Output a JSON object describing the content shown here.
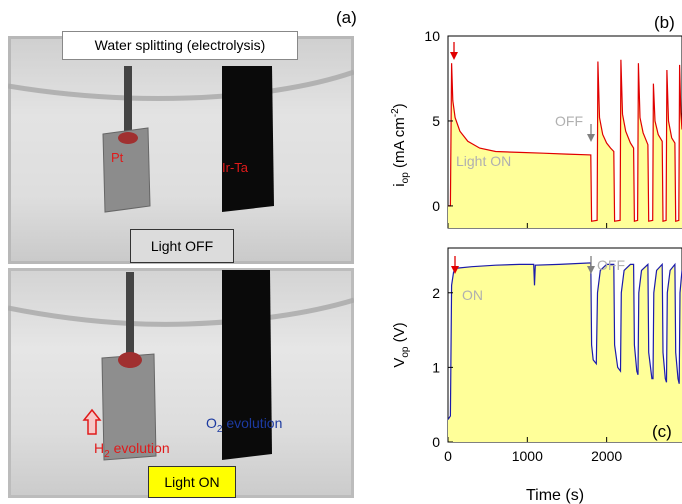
{
  "panel_a": {
    "letter": "(a)",
    "title": "Water splitting (electrolysis)",
    "state_off": "Light OFF",
    "state_on": "Light ON",
    "electrode_left": "Pt",
    "electrode_right": "Ir-Ta",
    "h2_main": "H",
    "h2_sub": "2",
    "h2_rest": " evolution",
    "o2_main": "O",
    "o2_sub": "2",
    "o2_rest": " evolution"
  },
  "panel_b": {
    "letter": "(b)",
    "annot_off": "OFF",
    "annot_on": "Light ON"
  },
  "panel_c": {
    "letter": "(c)",
    "annot_off": "OFF",
    "annot_on": "ON"
  },
  "colors": {
    "fill": "#ffff99",
    "current": "#e00000",
    "voltage": "#1c1caa",
    "arrow_red": "#e00000",
    "arrow_gray": "#808080",
    "annot_gray": "#b0b0b0"
  },
  "chart_data": [
    {
      "type": "line",
      "panel": "b",
      "ylabel_main": "i",
      "ylabel_sub": "op",
      "ylabel_rest": " (mA cm",
      "ylabel_sup": "-2",
      "ylabel_close": ")",
      "xlim": [
        0,
        2950
      ],
      "ylim": [
        -1.3,
        10
      ],
      "yticks": [
        0,
        5,
        10
      ],
      "xticks": [
        0,
        1000,
        2000
      ],
      "series": [
        {
          "values": [
            [
              0,
              0
            ],
            [
              30,
              0
            ],
            [
              45,
              8.4
            ],
            [
              60,
              6.2
            ],
            [
              90,
              5.2
            ],
            [
              150,
              4.4
            ],
            [
              250,
              3.8
            ],
            [
              400,
              3.4
            ],
            [
              600,
              3.2
            ],
            [
              900,
              3.15
            ],
            [
              1200,
              3.1
            ],
            [
              1500,
              3.05
            ],
            [
              1800,
              3.0
            ],
            [
              1810,
              -0.9
            ],
            [
              1880,
              -0.85
            ],
            [
              1890,
              8.5
            ],
            [
              1910,
              5.2
            ],
            [
              1950,
              4.2
            ],
            [
              2000,
              3.7
            ],
            [
              2050,
              3.4
            ],
            [
              2090,
              3.2
            ],
            [
              2100,
              -0.9
            ],
            [
              2170,
              -0.85
            ],
            [
              2180,
              8.6
            ],
            [
              2200,
              5.4
            ],
            [
              2240,
              4.4
            ],
            [
              2300,
              3.7
            ],
            [
              2340,
              3.4
            ],
            [
              2350,
              -0.9
            ],
            [
              2390,
              -0.85
            ],
            [
              2400,
              8.4
            ],
            [
              2420,
              5.2
            ],
            [
              2460,
              4.3
            ],
            [
              2520,
              3.6
            ],
            [
              2530,
              -0.9
            ],
            [
              2580,
              -0.85
            ],
            [
              2590,
              7.2
            ],
            [
              2610,
              5.0
            ],
            [
              2650,
              4.2
            ],
            [
              2700,
              3.8
            ],
            [
              2710,
              -0.9
            ],
            [
              2750,
              -0.85
            ],
            [
              2760,
              8.0
            ],
            [
              2780,
              5.0
            ],
            [
              2820,
              4.0
            ],
            [
              2860,
              3.7
            ],
            [
              2870,
              -0.9
            ],
            [
              2910,
              -0.85
            ],
            [
              2920,
              8.3
            ],
            [
              2935,
              5.5
            ],
            [
              2950,
              4.5
            ]
          ]
        }
      ]
    },
    {
      "type": "line",
      "panel": "c",
      "ylabel_main": "V",
      "ylabel_sub": "op",
      "ylabel_rest": " (V)",
      "xlabel": "Time (s)",
      "xlim": [
        0,
        2950
      ],
      "ylim": [
        0,
        2.6
      ],
      "yticks": [
        0,
        1,
        2
      ],
      "xticks": [
        0,
        1000,
        2000
      ],
      "series": [
        {
          "values": [
            [
              0,
              0.3
            ],
            [
              30,
              0.35
            ],
            [
              45,
              2.1
            ],
            [
              70,
              2.28
            ],
            [
              120,
              2.33
            ],
            [
              300,
              2.35
            ],
            [
              600,
              2.37
            ],
            [
              900,
              2.38
            ],
            [
              1080,
              2.38
            ],
            [
              1090,
              2.1
            ],
            [
              1100,
              2.37
            ],
            [
              1400,
              2.38
            ],
            [
              1800,
              2.4
            ],
            [
              1810,
              1.3
            ],
            [
              1830,
              1.1
            ],
            [
              1870,
              1.05
            ],
            [
              1885,
              2.0
            ],
            [
              1920,
              2.3
            ],
            [
              2000,
              2.38
            ],
            [
              2090,
              2.38
            ],
            [
              2100,
              1.3
            ],
            [
              2140,
              1.0
            ],
            [
              2175,
              0.95
            ],
            [
              2185,
              2.0
            ],
            [
              2220,
              2.3
            ],
            [
              2300,
              2.38
            ],
            [
              2340,
              2.38
            ],
            [
              2350,
              1.3
            ],
            [
              2380,
              0.95
            ],
            [
              2395,
              0.9
            ],
            [
              2405,
              2.0
            ],
            [
              2440,
              2.3
            ],
            [
              2520,
              2.38
            ],
            [
              2530,
              1.2
            ],
            [
              2570,
              0.85
            ],
            [
              2585,
              0.85
            ],
            [
              2595,
              2.0
            ],
            [
              2630,
              2.3
            ],
            [
              2700,
              2.38
            ],
            [
              2710,
              1.2
            ],
            [
              2740,
              0.85
            ],
            [
              2755,
              0.8
            ],
            [
              2765,
              2.0
            ],
            [
              2800,
              2.3
            ],
            [
              2860,
              2.38
            ],
            [
              2870,
              1.2
            ],
            [
              2900,
              0.85
            ],
            [
              2915,
              0.78
            ],
            [
              2925,
              2.0
            ],
            [
              2950,
              2.3
            ]
          ]
        }
      ]
    }
  ]
}
